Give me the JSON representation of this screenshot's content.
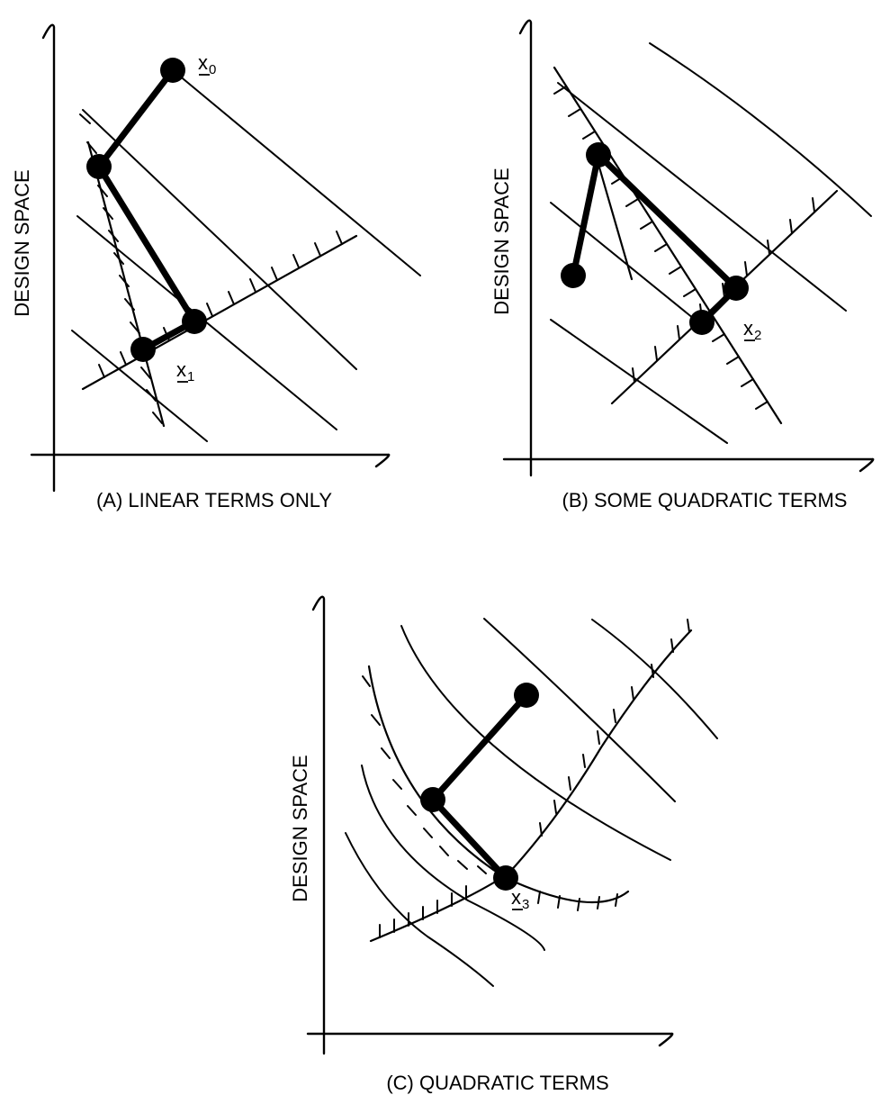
{
  "panels": [
    {
      "axis_label": "DESIGN SPACE",
      "caption": "(A) LINEAR TERMS ONLY",
      "points": [
        {
          "letter": "x",
          "sub": "0"
        },
        {
          "letter": "x",
          "sub": "1"
        }
      ]
    },
    {
      "axis_label": "DESIGN SPACE",
      "caption": "(B) SOME QUADRATIC TERMS",
      "points": [
        {
          "letter": "x",
          "sub": "2"
        }
      ]
    },
    {
      "axis_label": "DESIGN SPACE",
      "caption": "(C) QUADRATIC TERMS",
      "points": [
        {
          "letter": "x",
          "sub": "3"
        }
      ]
    }
  ]
}
